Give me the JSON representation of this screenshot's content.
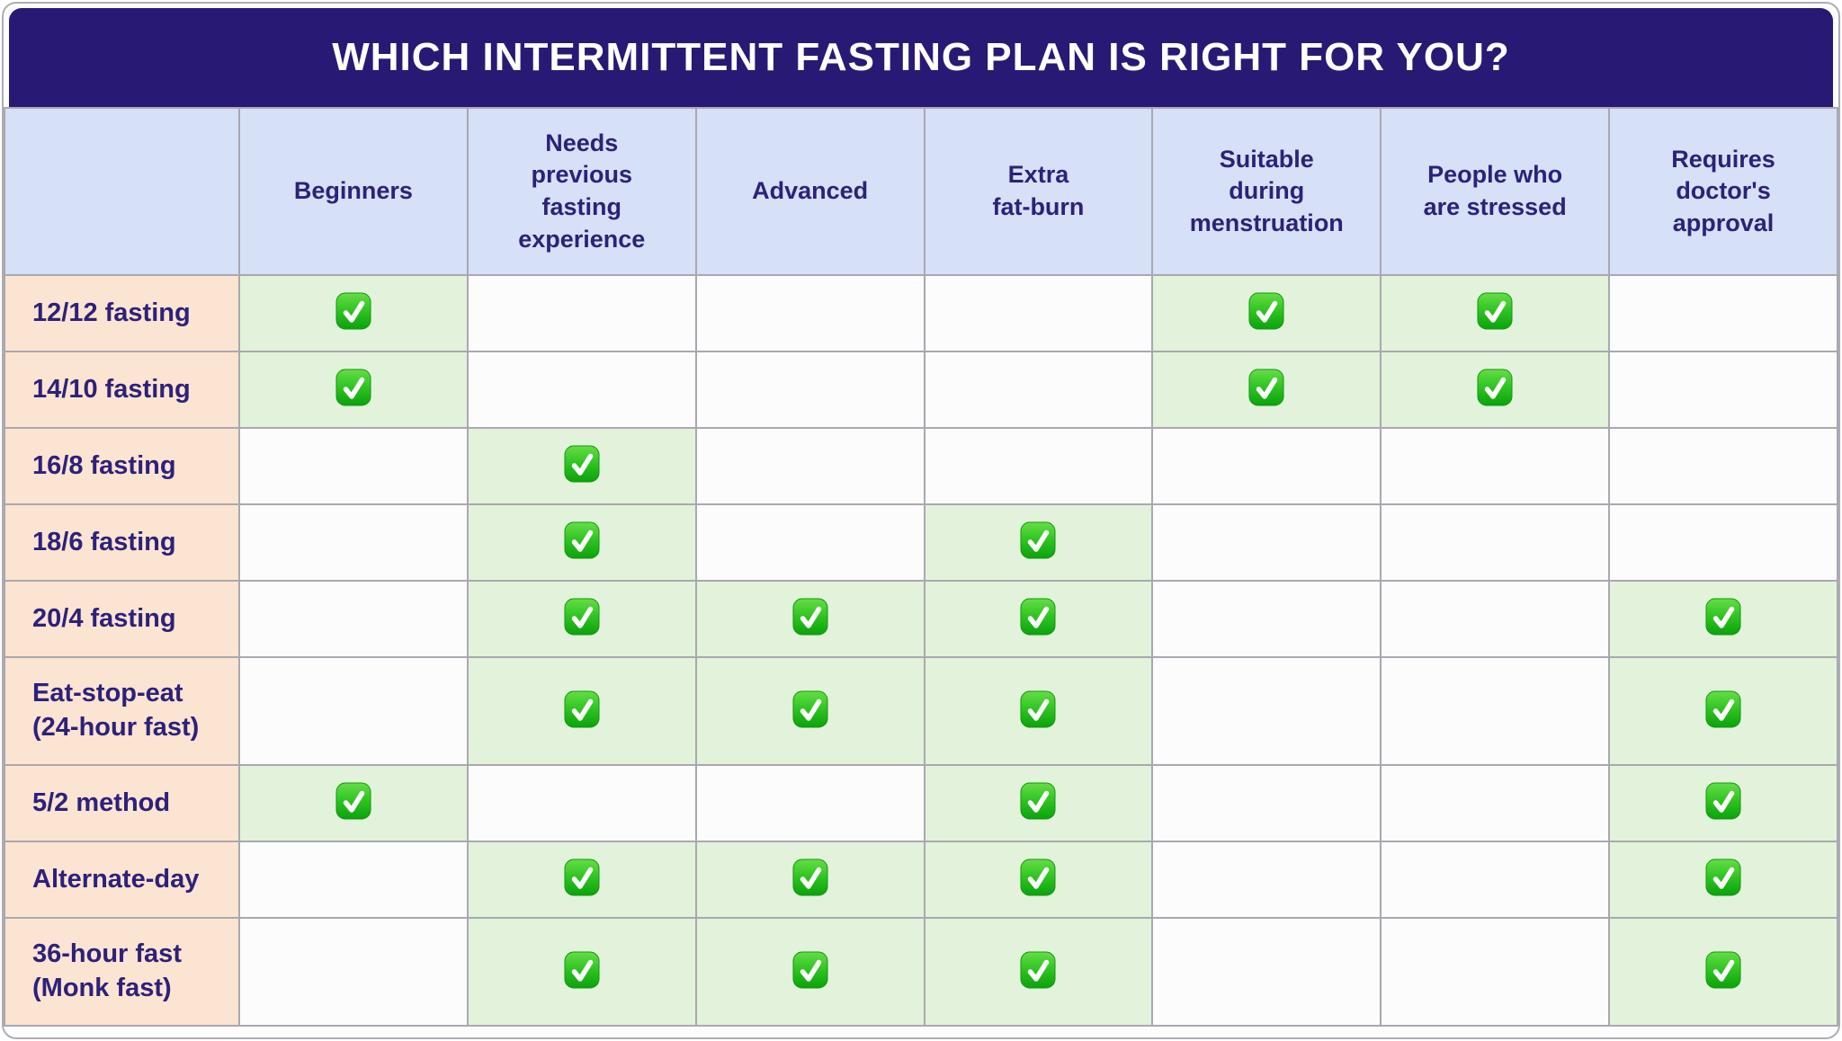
{
  "title_bar": {
    "title": "WHICH INTERMITTENT FASTING PLAN IS RIGHT FOR YOU?"
  },
  "icons": {
    "check": {
      "name": "check-icon",
      "glyph": "✅",
      "meaning": "plan suits this criterion"
    }
  },
  "colors": {
    "title_bar_bg": "#281a74",
    "title_text": "#ffffff",
    "header_cell_bg": "#d6e0f7",
    "row_label_bg": "#fce4d2",
    "checked_cell_bg": "#e2f2db",
    "empty_cell_bg": "#fdfcfd",
    "grid_border": "#a9a8b0",
    "text_navy": "#2d2179",
    "check_green_light": "#65de46",
    "check_green_dark": "#0ba20c"
  },
  "chart_data": {
    "type": "table",
    "title": "WHICH INTERMITTENT FASTING PLAN IS RIGHT FOR YOU?",
    "legend_position": "none",
    "grid": true,
    "columns": [
      "Beginners",
      "Needs\nprevious\nfasting\nexperience",
      "Advanced",
      "Extra\nfat-burn",
      "Suitable\nduring\nmenstruation",
      "People who\nare stressed",
      "Requires\ndoctor's\napproval"
    ],
    "rows": [
      {
        "label": "12/12 fasting",
        "checks": [
          1,
          0,
          0,
          0,
          1,
          1,
          0
        ]
      },
      {
        "label": "14/10 fasting",
        "checks": [
          1,
          0,
          0,
          0,
          1,
          1,
          0
        ]
      },
      {
        "label": "16/8 fasting",
        "checks": [
          0,
          1,
          0,
          0,
          0,
          0,
          0
        ]
      },
      {
        "label": "18/6 fasting",
        "checks": [
          0,
          1,
          0,
          1,
          0,
          0,
          0
        ]
      },
      {
        "label": "20/4 fasting",
        "checks": [
          0,
          1,
          1,
          1,
          0,
          0,
          1
        ]
      },
      {
        "label": "Eat-stop-eat\n(24-hour fast)",
        "checks": [
          0,
          1,
          1,
          1,
          0,
          0,
          1
        ]
      },
      {
        "label": "5/2 method",
        "checks": [
          1,
          0,
          0,
          1,
          0,
          0,
          1
        ]
      },
      {
        "label": "Alternate-day",
        "checks": [
          0,
          1,
          1,
          1,
          0,
          0,
          1
        ]
      },
      {
        "label": "36-hour fast\n(Monk fast)",
        "checks": [
          0,
          1,
          1,
          1,
          0,
          0,
          1
        ]
      }
    ]
  }
}
